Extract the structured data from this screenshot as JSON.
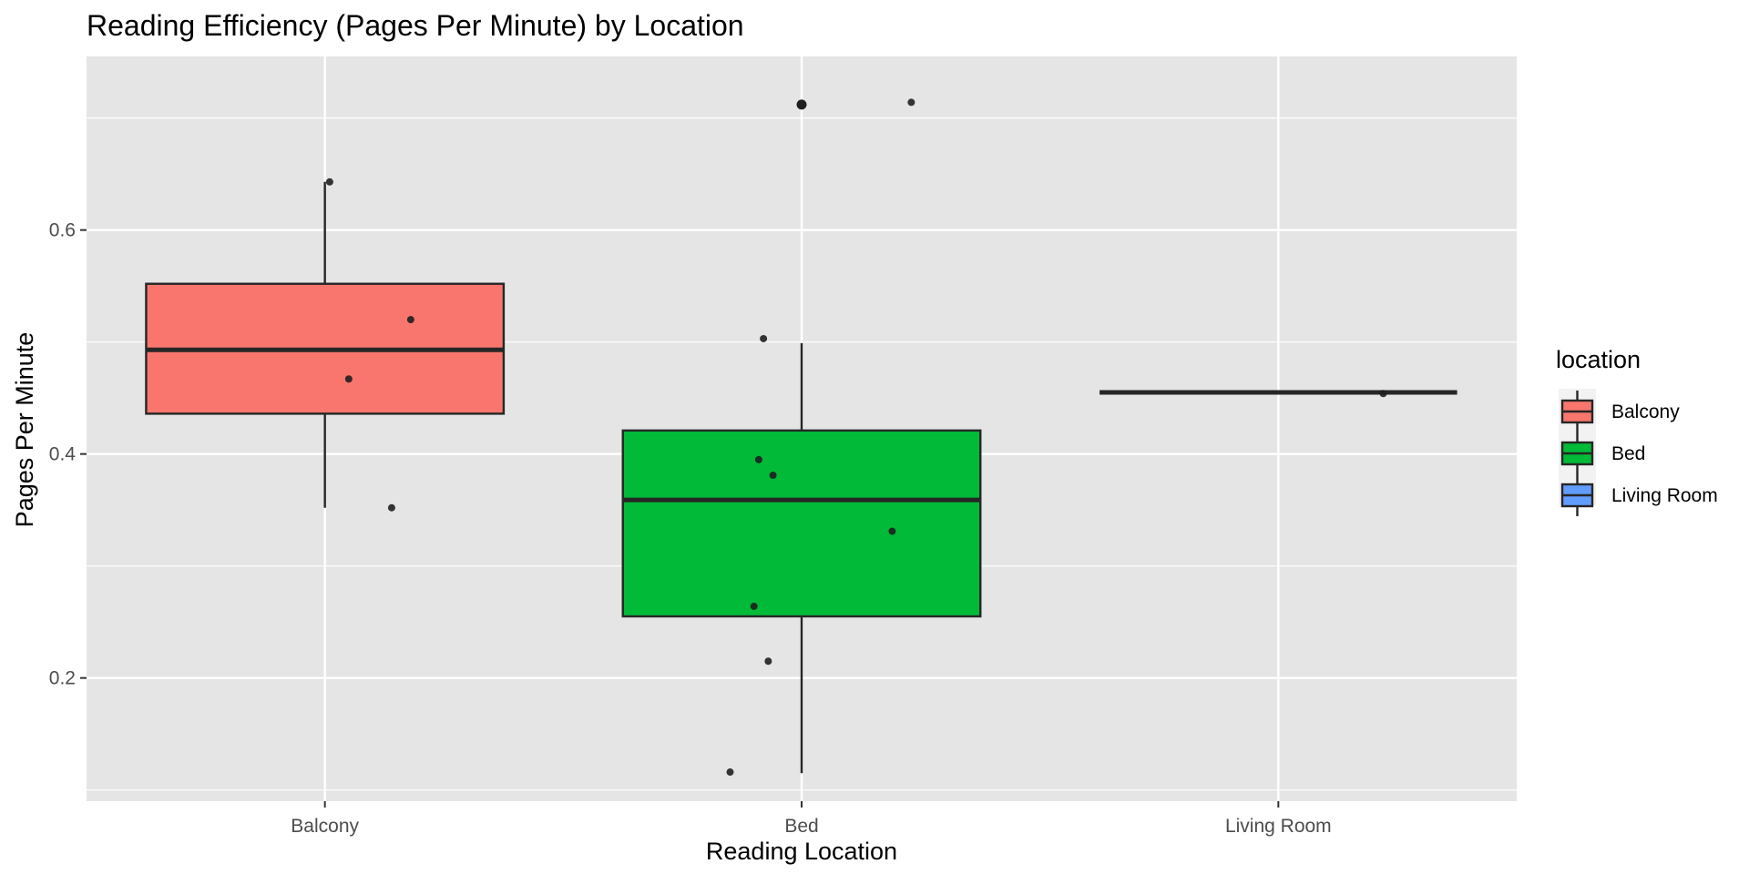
{
  "chart_data": {
    "type": "boxplot",
    "title": "Reading Efficiency (Pages Per Minute) by Location",
    "xlabel": "Reading Location",
    "ylabel": "Pages Per Minute",
    "ylim": [
      0.09,
      0.755
    ],
    "y_ticks": [
      0.2,
      0.4,
      0.6
    ],
    "y_tick_labels": [
      "0.2",
      "0.4",
      "0.6"
    ],
    "y_minor_ticks": [
      0.1,
      0.3,
      0.5,
      0.7
    ],
    "categories": [
      "Balcony",
      "Bed",
      "Living Room"
    ],
    "grid": true,
    "legend": {
      "title": "location",
      "position": "right",
      "entries": [
        "Balcony",
        "Bed",
        "Living Room"
      ]
    },
    "boxes": [
      {
        "category": "Balcony",
        "whisker_low": 0.352,
        "q1": 0.436,
        "median": 0.493,
        "q3": 0.552,
        "whisker_high": 0.643,
        "outliers": []
      },
      {
        "category": "Bed",
        "whisker_low": 0.115,
        "q1": 0.255,
        "median": 0.359,
        "q3": 0.421,
        "whisker_high": 0.499,
        "outliers": [
          0.712
        ]
      },
      {
        "category": "Living Room",
        "whisker_low": 0.455,
        "q1": 0.455,
        "median": 0.455,
        "q3": 0.455,
        "whisker_high": 0.455,
        "outliers": []
      }
    ],
    "points": [
      {
        "category": "Balcony",
        "jitter": 0.01,
        "y": 0.643
      },
      {
        "category": "Balcony",
        "jitter": 0.18,
        "y": 0.52
      },
      {
        "category": "Balcony",
        "jitter": 0.05,
        "y": 0.467
      },
      {
        "category": "Balcony",
        "jitter": 0.14,
        "y": 0.352
      },
      {
        "category": "Bed",
        "jitter": 0.23,
        "y": 0.714
      },
      {
        "category": "Bed",
        "jitter": -0.08,
        "y": 0.503
      },
      {
        "category": "Bed",
        "jitter": -0.09,
        "y": 0.395
      },
      {
        "category": "Bed",
        "jitter": -0.06,
        "y": 0.381
      },
      {
        "category": "Bed",
        "jitter": 0.19,
        "y": 0.331
      },
      {
        "category": "Bed",
        "jitter": -0.1,
        "y": 0.264
      },
      {
        "category": "Bed",
        "jitter": -0.07,
        "y": 0.215
      },
      {
        "category": "Bed",
        "jitter": -0.15,
        "y": 0.116
      },
      {
        "category": "Living Room",
        "jitter": 0.22,
        "y": 0.454
      }
    ],
    "colors": {
      "Balcony": "#f8766d",
      "Bed": "#00ba38",
      "Living Room": "#619cff",
      "panel": "#e5e5e5",
      "grid": "#ffffff",
      "outline": "#262626",
      "point": "#1f1f1f"
    }
  }
}
